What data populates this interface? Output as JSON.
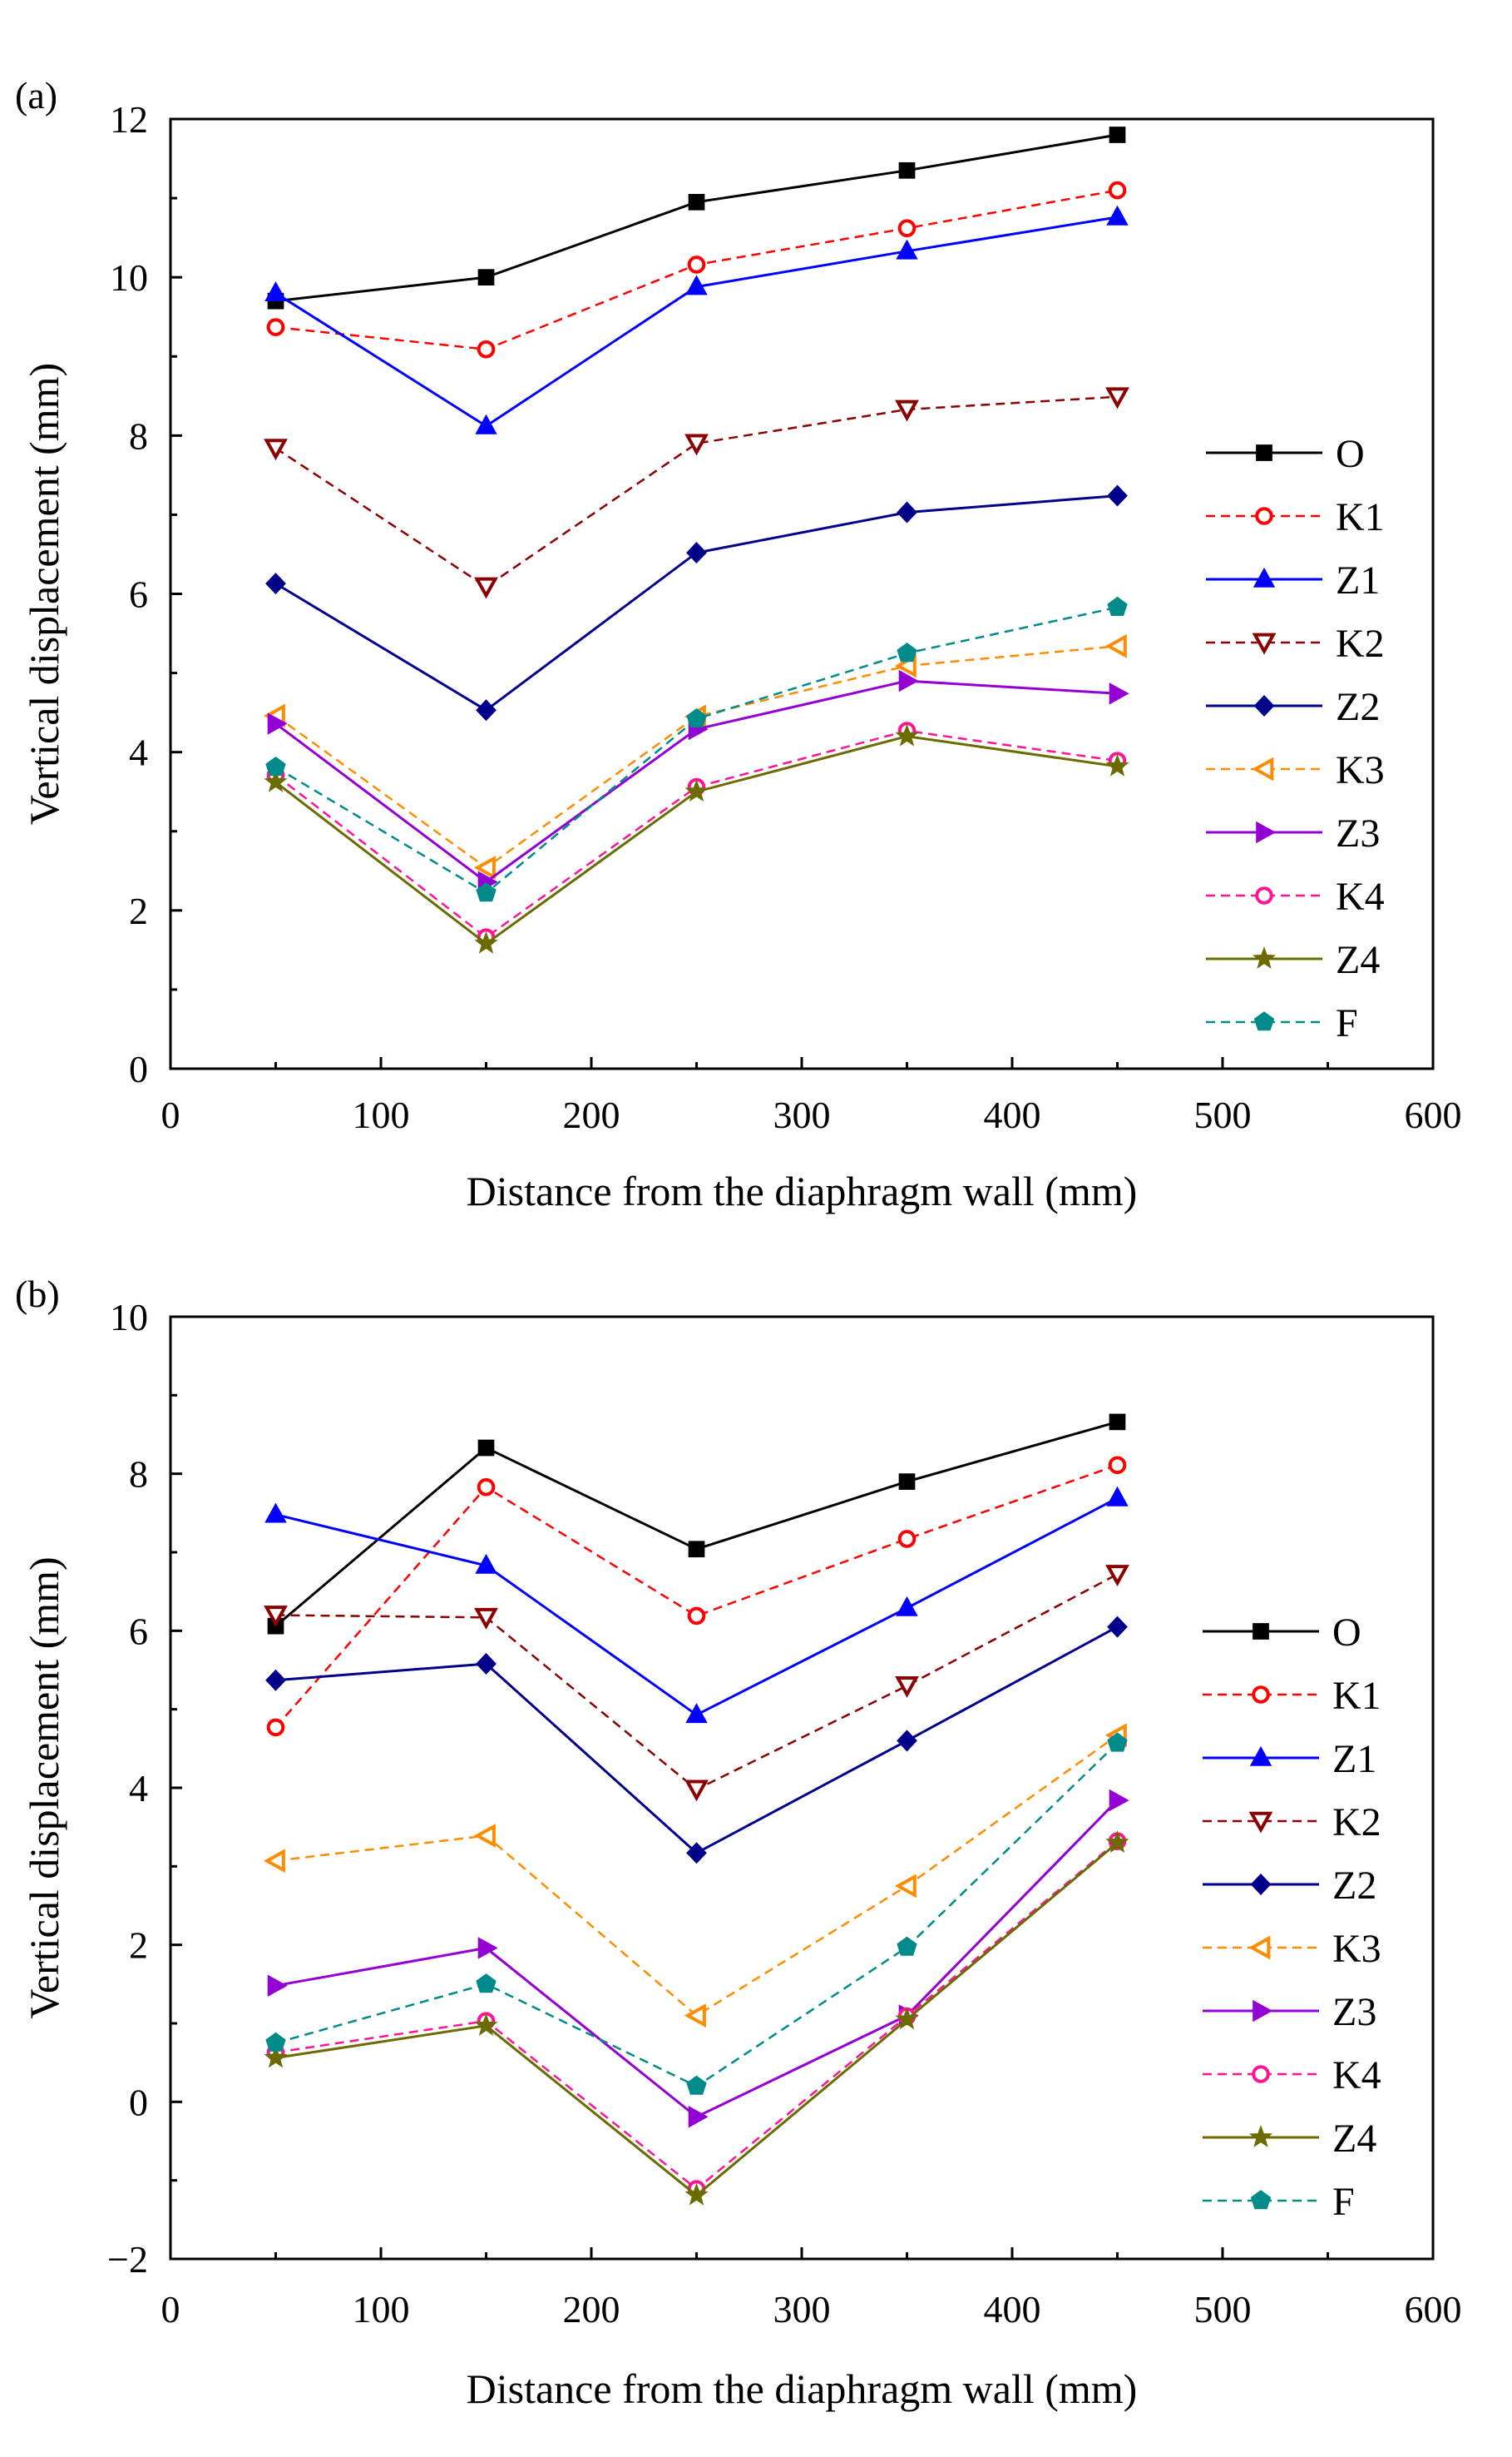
{
  "chart_data": [
    {
      "type": "line",
      "panel_label": "(a)",
      "xlabel": "Distance from the diaphragm wall (mm)",
      "ylabel": "Vertical displacement (mm)",
      "xlim": [
        0,
        600
      ],
      "ylim": [
        0,
        12
      ],
      "xticks": [
        0,
        100,
        200,
        300,
        400,
        500,
        600
      ],
      "yticks": [
        0,
        2,
        4,
        6,
        8,
        10,
        12
      ],
      "x": [
        50,
        150,
        250,
        350,
        450
      ],
      "grid": false,
      "legend_position": "right",
      "series": [
        {
          "name": "O",
          "values": [
            9.7,
            10.0,
            10.95,
            11.35,
            11.8
          ],
          "color": "#000000",
          "marker": "square",
          "dash": "solid",
          "filled": true
        },
        {
          "name": "K1",
          "values": [
            9.37,
            9.09,
            10.16,
            10.62,
            11.1
          ],
          "color": "#ff0000",
          "marker": "circle",
          "dash": "dashed",
          "filled": false
        },
        {
          "name": "Z1",
          "values": [
            9.8,
            8.12,
            9.88,
            10.33,
            10.76
          ],
          "color": "#0000ff",
          "marker": "triangle-up",
          "dash": "solid",
          "filled": true
        },
        {
          "name": "K2",
          "values": [
            7.84,
            6.09,
            7.9,
            8.33,
            8.49
          ],
          "color": "#8b0000",
          "marker": "triangle-down",
          "dash": "dashed",
          "filled": false
        },
        {
          "name": "Z2",
          "values": [
            6.13,
            4.53,
            6.52,
            7.03,
            7.24
          ],
          "color": "#00008b",
          "marker": "diamond",
          "dash": "solid",
          "filled": true
        },
        {
          "name": "K3",
          "values": [
            4.46,
            2.54,
            4.45,
            5.09,
            5.34
          ],
          "color": "#ff8c00",
          "marker": "triangle-left",
          "dash": "dashed",
          "filled": false
        },
        {
          "name": "Z3",
          "values": [
            4.36,
            2.36,
            4.29,
            4.9,
            4.74
          ],
          "color": "#9400d3",
          "marker": "triangle-right",
          "dash": "solid",
          "filled": true
        },
        {
          "name": "K4",
          "values": [
            3.71,
            1.66,
            3.56,
            4.27,
            3.89
          ],
          "color": "#ff1493",
          "marker": "circle",
          "dash": "dashed",
          "filled": false
        },
        {
          "name": "Z4",
          "values": [
            3.62,
            1.58,
            3.5,
            4.2,
            3.82
          ],
          "color": "#6b6b00",
          "marker": "star",
          "dash": "solid",
          "filled": true
        },
        {
          "name": "F",
          "values": [
            3.81,
            2.22,
            4.42,
            5.25,
            5.83
          ],
          "color": "#008b8b",
          "marker": "pentagon",
          "dash": "dashed",
          "filled": true
        }
      ]
    },
    {
      "type": "line",
      "panel_label": "(b)",
      "xlabel": "Distance from the diaphragm wall (mm)",
      "ylabel": "Vertical displacement (mm)",
      "xlim": [
        0,
        600
      ],
      "ylim": [
        -2,
        10
      ],
      "xticks": [
        0,
        100,
        200,
        300,
        400,
        500,
        600
      ],
      "yticks": [
        -2,
        0,
        2,
        4,
        6,
        8,
        10
      ],
      "ytick_labels": [
        "−2",
        "0",
        "2",
        "4",
        "6",
        "8",
        "10"
      ],
      "x": [
        50,
        150,
        250,
        350,
        450
      ],
      "grid": false,
      "legend_position": "right",
      "series": [
        {
          "name": "O",
          "values": [
            6.06,
            8.33,
            7.04,
            7.9,
            8.66
          ],
          "color": "#000000",
          "marker": "square",
          "dash": "solid",
          "filled": true
        },
        {
          "name": "K1",
          "values": [
            4.77,
            7.83,
            6.19,
            7.17,
            8.11
          ],
          "color": "#ff0000",
          "marker": "circle",
          "dash": "dashed",
          "filled": false
        },
        {
          "name": "Z1",
          "values": [
            7.48,
            6.83,
            4.93,
            6.29,
            7.69
          ],
          "color": "#0000ff",
          "marker": "triangle-up",
          "dash": "solid",
          "filled": true
        },
        {
          "name": "K2",
          "values": [
            6.2,
            6.17,
            3.98,
            5.3,
            6.72
          ],
          "color": "#8b0000",
          "marker": "triangle-down",
          "dash": "dashed",
          "filled": false
        },
        {
          "name": "Z2",
          "values": [
            5.37,
            5.58,
            3.17,
            4.6,
            6.05
          ],
          "color": "#00008b",
          "marker": "diamond",
          "dash": "solid",
          "filled": true
        },
        {
          "name": "K3",
          "values": [
            3.07,
            3.39,
            1.1,
            2.75,
            4.67
          ],
          "color": "#ff8c00",
          "marker": "triangle-left",
          "dash": "dashed",
          "filled": false
        },
        {
          "name": "Z3",
          "values": [
            1.48,
            1.96,
            -0.19,
            1.1,
            3.84
          ],
          "color": "#9400d3",
          "marker": "triangle-right",
          "dash": "solid",
          "filled": true
        },
        {
          "name": "K4",
          "values": [
            0.63,
            1.03,
            -1.11,
            1.09,
            3.32
          ],
          "color": "#ff1493",
          "marker": "circle",
          "dash": "dashed",
          "filled": false
        },
        {
          "name": "Z4",
          "values": [
            0.56,
            0.97,
            -1.19,
            1.05,
            3.3
          ],
          "color": "#6b6b00",
          "marker": "star",
          "dash": "solid",
          "filled": true
        },
        {
          "name": "F",
          "values": [
            0.75,
            1.5,
            0.2,
            1.97,
            4.57
          ],
          "color": "#008b8b",
          "marker": "pentagon",
          "dash": "dashed",
          "filled": true
        }
      ]
    }
  ]
}
